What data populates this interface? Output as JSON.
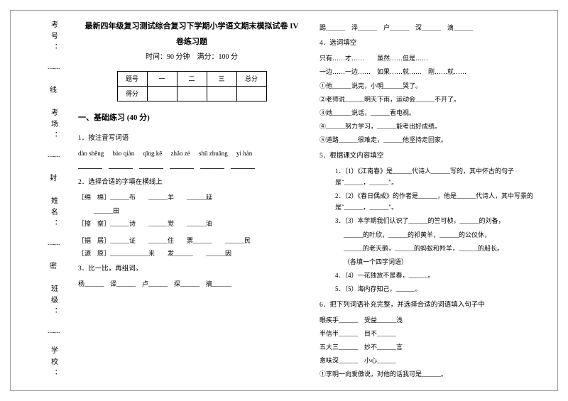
{
  "header": {
    "title": "最新四年级复习测试综合复习下学期小学语文期末模拟试卷 IV",
    "title2": "卷练习题",
    "timing": "时间：90 分钟　满分：100 分"
  },
  "scoreTable": {
    "r1": [
      "题号",
      "一",
      "二",
      "三",
      "总分"
    ],
    "r2": [
      "得分",
      "",
      "",
      "",
      ""
    ]
  },
  "spine": {
    "s1": "考号：",
    "s2": "考场：",
    "s3": "姓名：",
    "s4": "班级：",
    "s5": "学校：",
    "c1": "线",
    "c2": "封",
    "c3": "密"
  },
  "section1": {
    "head": "一、基础练习 (40 分)"
  },
  "q1": {
    "title": "1．按注音写词语",
    "pinyin": [
      "dàn shēng",
      "bào qiàn",
      "qīng kē",
      "zhǎo zé",
      "shū zhuāng",
      "yí hàn"
    ]
  },
  "q2": {
    "title": "2．选择合适的字填在横线上",
    "l1": "［绵　棉］______布　　______羊　　______延",
    "l1b": "______田",
    "l2": "［擦　察］______诗　　______觉　　______油",
    "l2b": "",
    "l3": "［据　居］______证　　______住　　票______　　______民",
    "l4": "［源　原］____________来　　发______　　______因"
  },
  "q3": {
    "title": "3．比一比，再组词。",
    "row": "杨______　译______　卢______　探______　摘______"
  },
  "rightTop": {
    "row": "踢______　泽______　户______　深______　滴______"
  },
  "q4": {
    "title": "4．选词填空",
    "l0": "只有……才……　　虽然……但是……",
    "l1": "一边……一边……　如果……就……　刚……就……",
    "l2": "①他______说完，小明______哭了。",
    "l3": "②老师说______明天下雨，运动会______不开了。",
    "l4": "③她______说话，______看电视。",
    "l5": "④______努力学习，______能考出好成绩。",
    "l6": "⑤道路______很难走，______他坚持走回家。"
  },
  "q5": {
    "title": "5．根据课文内容填空",
    "i1": "1．（1）《江南春》是______代诗人______写的，其中怀古的句子是‶______，______″。",
    "i2": "2．（2）《春日偶成》的作者是______，他是______代诗人，其中写景的是‶______，______″。",
    "i3a": "3．（3）本学期我们认识了______的竺可桢，______的刘备，",
    "i3b": "______的叶欣，______的祁黄羊，______的公仪休，",
    "i3c": "______的老天鹅，______的蚂蚁和羚羊，______的船长。",
    "i3d": "（各填一个四字词语）",
    "i4": "4．（4）一花独放不是春，______。",
    "i5": "5．（5）海内存知己，______。"
  },
  "q6": {
    "title": "6．把下列词语补充完整，并选择合适的词语填入句子中",
    "l1": "眼疾手______　受益______浅",
    "l2": "半信半______　目不______",
    "l3": "五大三______　妙不______言",
    "l4": "意味深______　小心______",
    "l5": "①李明一向爱傲说，对他的话我可是______。"
  }
}
